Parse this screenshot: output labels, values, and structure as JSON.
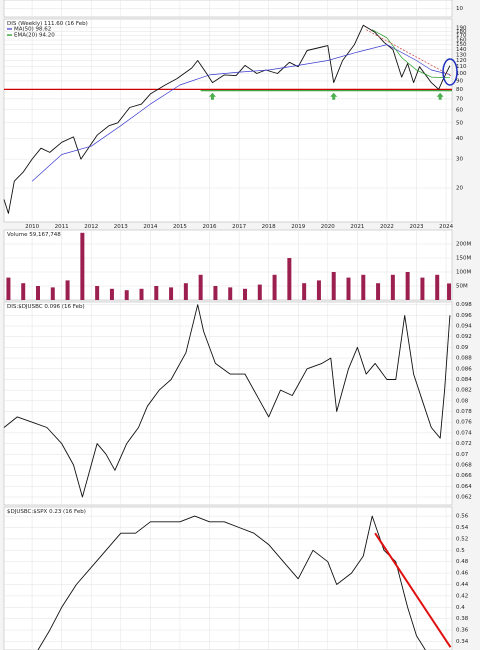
{
  "chart_data": [
    {
      "type": "line",
      "ylim": [
        0,
        20
      ],
      "yticks": [
        10
      ]
    },
    {
      "type": "line",
      "title": "DIS (Weekly) 111.60 (16 Feb)",
      "log_scale": true,
      "grid": true,
      "xlim": [
        2009.05,
        2024.2
      ],
      "xticks": [
        2010,
        2011,
        2012,
        2013,
        2014,
        2015,
        2016,
        2017,
        2018,
        2019,
        2020,
        2021,
        2022,
        2023,
        2024
      ],
      "ylim": [
        12.4,
        215
      ],
      "yticks": [
        20,
        30,
        40,
        50,
        60,
        70,
        80,
        90,
        100,
        110,
        120,
        130,
        140,
        150,
        160,
        170,
        180,
        190
      ],
      "series": [
        {
          "color": "#111111",
          "x": [
            2009.05,
            2009.2,
            2009.4,
            2009.7,
            2010.0,
            2010.3,
            2010.6,
            2011.0,
            2011.4,
            2011.65,
            2011.9,
            2012.2,
            2012.6,
            2012.9,
            2013.3,
            2013.7,
            2014.0,
            2014.5,
            2014.9,
            2015.4,
            2015.6,
            2015.9,
            2016.1,
            2016.5,
            2016.9,
            2017.2,
            2017.6,
            2017.9,
            2018.3,
            2018.7,
            2019.0,
            2019.3,
            2019.8,
            2020.0,
            2020.2,
            2020.5,
            2020.9,
            2021.2,
            2021.6,
            2021.9,
            2022.2,
            2022.5,
            2022.7,
            2022.9,
            2023.1,
            2023.5,
            2023.75,
            2023.9,
            2024.13
          ],
          "values": [
            17,
            14,
            22,
            25,
            30,
            35,
            33,
            38,
            41,
            30,
            35,
            42,
            48,
            50,
            62,
            65,
            75,
            85,
            93,
            108,
            120,
            100,
            88,
            98,
            97,
            112,
            100,
            105,
            100,
            117,
            110,
            138,
            145,
            148,
            88,
            120,
            150,
            197,
            178,
            155,
            140,
            95,
            115,
            88,
            110,
            88,
            80,
            92,
            111.6
          ]
        },
        {
          "name": "MA(50) 98.62",
          "color": "#3a3ad0",
          "x": [
            2010.0,
            2011.0,
            2012.0,
            2013.0,
            2014.0,
            2015.0,
            2016.0,
            2017.0,
            2018.0,
            2019.0,
            2020.0,
            2021.0,
            2022.0,
            2023.0,
            2023.5,
            2024.13
          ],
          "values": [
            22,
            32,
            36,
            48,
            65,
            85,
            98,
            102,
            105,
            112,
            120,
            135,
            150,
            120,
            105,
            98.62
          ]
        },
        {
          "name": "EMA(20) 94.20",
          "color": "#1f9a1f",
          "x": [
            2021.5,
            2022.0,
            2022.5,
            2023.0,
            2023.5,
            2024.13
          ],
          "values": [
            185,
            165,
            125,
            105,
            95,
            94.2
          ]
        }
      ],
      "hlines": [
        {
          "value": 80,
          "color": "#d00000",
          "from": 2009.05
        },
        {
          "value": 78.5,
          "color": "#2a9a2a",
          "from": 2015.7
        }
      ],
      "trendline": {
        "x": [
          2021.3,
          2024.2
        ],
        "y": [
          185,
          96
        ],
        "color": "#d05050"
      },
      "arrows_x": [
        2016.1,
        2020.2,
        2023.8
      ],
      "arrow_color": "#4caf50"
    },
    {
      "type": "bar",
      "title": "Volume 59,167,748",
      "color": "#9b2050",
      "ylim": [
        0,
        250000000
      ],
      "yticks": [
        {
          "value": 50000000,
          "label": "50M"
        },
        {
          "value": 100000000,
          "label": "100M"
        },
        {
          "value": 150000000,
          "label": "150M"
        },
        {
          "value": 200000000,
          "label": "200M"
        }
      ],
      "x": [
        2009.2,
        2009.7,
        2010.2,
        2010.7,
        2011.2,
        2011.7,
        2012.2,
        2012.7,
        2013.2,
        2013.7,
        2014.2,
        2014.7,
        2015.2,
        2015.7,
        2016.2,
        2016.7,
        2017.2,
        2017.7,
        2018.2,
        2018.7,
        2019.2,
        2019.7,
        2020.2,
        2020.7,
        2021.2,
        2021.7,
        2022.2,
        2022.7,
        2023.2,
        2023.7,
        2024.1
      ],
      "values": [
        80000000,
        60000000,
        50000000,
        45000000,
        70000000,
        240000000,
        50000000,
        40000000,
        35000000,
        40000000,
        50000000,
        45000000,
        60000000,
        90000000,
        50000000,
        45000000,
        40000000,
        55000000,
        90000000,
        150000000,
        60000000,
        70000000,
        100000000,
        80000000,
        90000000,
        60000000,
        90000000,
        100000000,
        80000000,
        90000000,
        59167748
      ]
    },
    {
      "type": "line",
      "title": "DIS:$DJUSBC 0.096 (16 Feb)",
      "grid": true,
      "ylim": [
        0.0605,
        0.0985
      ],
      "yticks": [
        0.062,
        0.064,
        0.066,
        0.068,
        0.07,
        0.072,
        0.074,
        0.076,
        0.078,
        0.08,
        0.082,
        0.084,
        0.086,
        0.088,
        0.09,
        0.092,
        0.094,
        0.096,
        0.098
      ],
      "series": [
        {
          "color": "#111111",
          "x": [
            2009.05,
            2009.5,
            2010,
            2010.5,
            2011,
            2011.4,
            2011.7,
            2011.9,
            2012.2,
            2012.5,
            2012.8,
            2013.2,
            2013.6,
            2013.9,
            2014.3,
            2014.7,
            2015.2,
            2015.6,
            2015.8,
            2016.2,
            2016.7,
            2017.2,
            2017.7,
            2018.0,
            2018.4,
            2018.8,
            2019.3,
            2019.8,
            2020.1,
            2020.3,
            2020.7,
            2021.0,
            2021.3,
            2021.6,
            2022.0,
            2022.3,
            2022.6,
            2022.9,
            2023.2,
            2023.5,
            2023.8,
            2023.95,
            2024.13
          ],
          "values": [
            0.075,
            0.077,
            0.076,
            0.075,
            0.072,
            0.068,
            0.062,
            0.066,
            0.072,
            0.07,
            0.067,
            0.072,
            0.075,
            0.079,
            0.082,
            0.084,
            0.089,
            0.098,
            0.093,
            0.087,
            0.085,
            0.085,
            0.08,
            0.077,
            0.082,
            0.081,
            0.086,
            0.087,
            0.088,
            0.078,
            0.086,
            0.09,
            0.085,
            0.087,
            0.084,
            0.084,
            0.096,
            0.085,
            0.08,
            0.075,
            0.073,
            0.082,
            0.096
          ]
        }
      ]
    },
    {
      "type": "line",
      "title": "$DJUSBC:$SPX 0.23 (16 Feb)",
      "grid": true,
      "ylim": [
        0.325,
        0.576
      ],
      "yticks": [
        0.34,
        0.36,
        0.38,
        0.4,
        0.42,
        0.44,
        0.46,
        0.48,
        0.5,
        0.52,
        0.54,
        0.56
      ],
      "series": [
        {
          "color": "#111111",
          "x": [
            2010.2,
            2010.6,
            2011,
            2011.5,
            2012,
            2012.5,
            2013,
            2013.5,
            2014,
            2014.5,
            2015,
            2015.5,
            2016,
            2016.5,
            2017,
            2017.5,
            2018,
            2018.5,
            2019,
            2019.5,
            2020,
            2020.3,
            2020.8,
            2021.2,
            2021.5,
            2021.9,
            2022.3,
            2022.7,
            2023.0,
            2023.3
          ],
          "values": [
            0.325,
            0.36,
            0.4,
            0.44,
            0.47,
            0.5,
            0.53,
            0.53,
            0.55,
            0.55,
            0.55,
            0.56,
            0.55,
            0.55,
            0.54,
            0.53,
            0.51,
            0.48,
            0.45,
            0.5,
            0.48,
            0.44,
            0.46,
            0.49,
            0.56,
            0.5,
            0.48,
            0.4,
            0.35,
            0.325
          ]
        }
      ],
      "trendline": {
        "x": [
          2021.6,
          2024.15
        ],
        "y": [
          0.53,
          0.33
        ],
        "color": "#e01010"
      }
    }
  ]
}
